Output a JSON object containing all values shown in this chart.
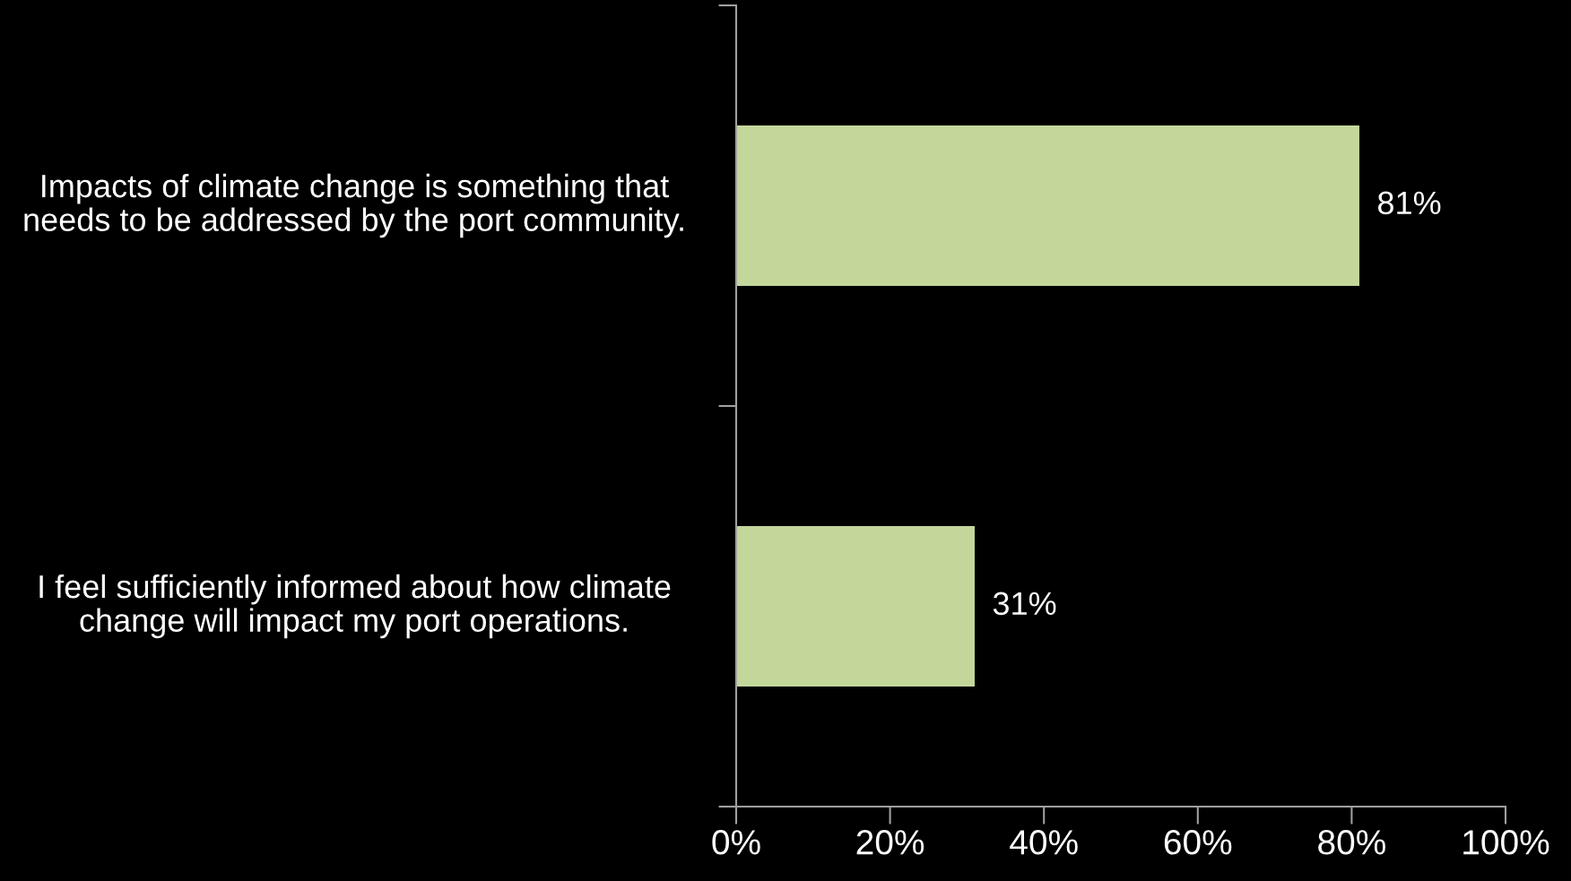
{
  "chart_data": {
    "type": "bar",
    "orientation": "horizontal",
    "categories": [
      "Impacts of climate change is something that needs to be addressed by the port community.",
      "I feel sufficiently informed about how climate change will impact my port operations."
    ],
    "values": [
      81,
      31
    ],
    "value_labels": [
      "81%",
      "31%"
    ],
    "color": "#c4d79b",
    "xlim": [
      0,
      100
    ],
    "xticks": [
      {
        "value": 0,
        "label": "0%"
      },
      {
        "value": 20,
        "label": "20%"
      },
      {
        "value": 40,
        "label": "40%"
      },
      {
        "value": 60,
        "label": "60%"
      },
      {
        "value": 80,
        "label": "80%"
      },
      {
        "value": 100,
        "label": "100%"
      }
    ],
    "grid": false,
    "legend": false
  }
}
